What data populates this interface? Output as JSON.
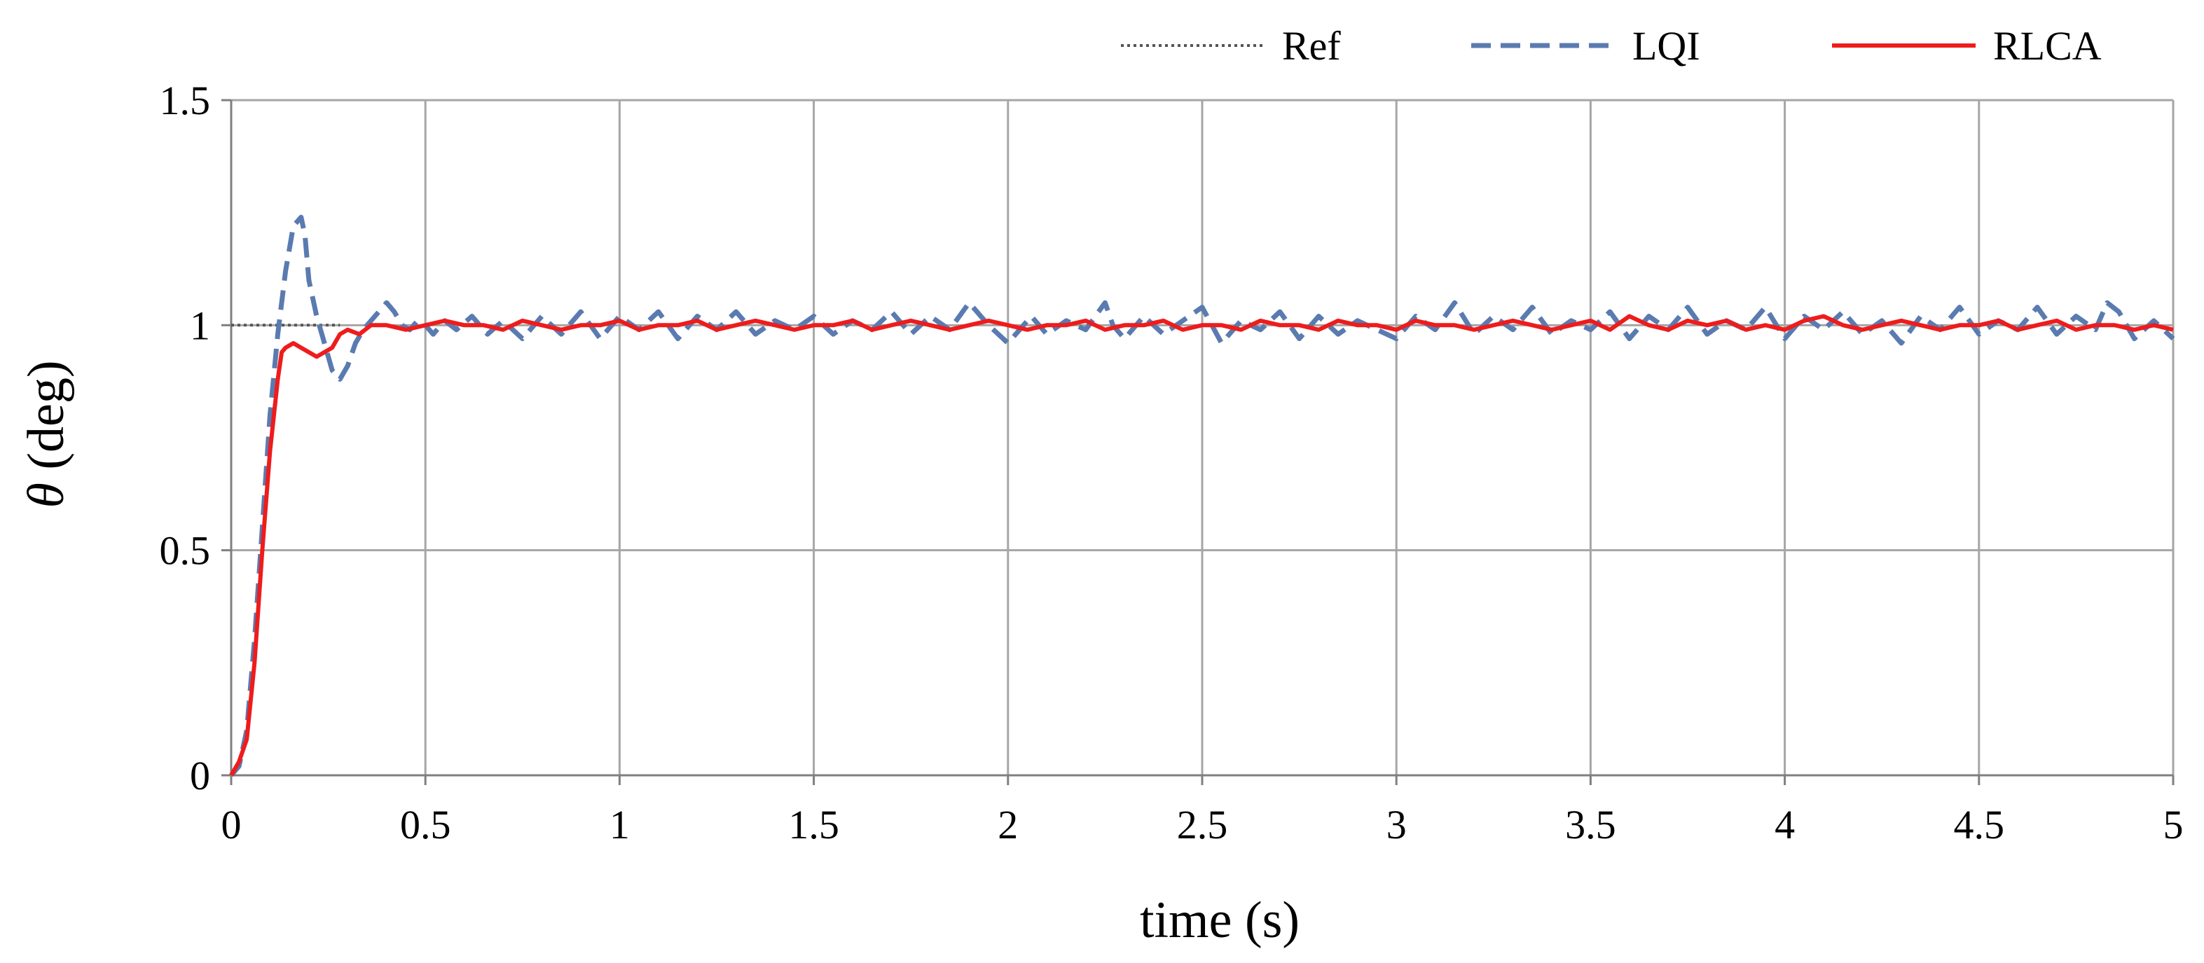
{
  "chart_data": {
    "type": "line",
    "xlabel": "time (s)",
    "ylabel_symbol": "θ",
    "ylabel_unit": " (deg)",
    "xlim": [
      0,
      5
    ],
    "ylim": [
      0,
      1.5
    ],
    "x_ticks": [
      0,
      0.5,
      1,
      1.5,
      2,
      2.5,
      3,
      3.5,
      4,
      4.5,
      5
    ],
    "x_tick_labels": [
      "0",
      "0.5",
      "1",
      "1.5",
      "2",
      "2.5",
      "3",
      "3.5",
      "4",
      "4.5",
      "5"
    ],
    "y_ticks": [
      0,
      0.5,
      1,
      1.5
    ],
    "y_tick_labels": [
      "0",
      "0.5",
      "1",
      "1.5"
    ],
    "grid": true,
    "legend_position": "top-right",
    "series": [
      {
        "name": "Ref",
        "style": "dotted",
        "color": "#555555",
        "x": [
          0,
          0.28
        ],
        "y": [
          1,
          1
        ]
      },
      {
        "name": "LQI",
        "style": "dashed",
        "color": "#5a7bb0",
        "x": [
          0,
          0.02,
          0.04,
          0.06,
          0.08,
          0.1,
          0.12,
          0.14,
          0.16,
          0.18,
          0.19,
          0.2,
          0.22,
          0.24,
          0.26,
          0.28,
          0.3,
          0.32,
          0.34,
          0.36,
          0.38,
          0.4,
          0.42,
          0.44,
          0.46,
          0.48,
          0.5,
          0.52,
          0.55,
          0.58,
          0.62,
          0.66,
          0.7,
          0.75,
          0.8,
          0.85,
          0.9,
          0.95,
          1.0,
          1.05,
          1.1,
          1.15,
          1.2,
          1.25,
          1.3,
          1.35,
          1.4,
          1.45,
          1.5,
          1.55,
          1.6,
          1.65,
          1.7,
          1.75,
          1.8,
          1.85,
          1.9,
          1.93,
          1.95,
          2.0,
          2.03,
          2.06,
          2.1,
          2.15,
          2.2,
          2.25,
          2.27,
          2.3,
          2.35,
          2.4,
          2.45,
          2.5,
          2.55,
          2.6,
          2.65,
          2.7,
          2.75,
          2.8,
          2.85,
          2.9,
          2.95,
          3.0,
          3.05,
          3.1,
          3.15,
          3.2,
          3.25,
          3.3,
          3.35,
          3.4,
          3.45,
          3.5,
          3.55,
          3.6,
          3.65,
          3.7,
          3.75,
          3.8,
          3.85,
          3.9,
          3.95,
          4.0,
          4.05,
          4.1,
          4.15,
          4.2,
          4.25,
          4.3,
          4.35,
          4.4,
          4.45,
          4.5,
          4.55,
          4.6,
          4.65,
          4.7,
          4.75,
          4.8,
          4.83,
          4.86,
          4.9,
          4.95,
          5.0
        ],
        "y": [
          0.0,
          0.02,
          0.1,
          0.3,
          0.55,
          0.8,
          0.98,
          1.12,
          1.22,
          1.24,
          1.2,
          1.1,
          1.02,
          0.96,
          0.9,
          0.88,
          0.91,
          0.96,
          0.99,
          1.01,
          1.03,
          1.05,
          1.03,
          1.0,
          0.99,
          1.01,
          1.0,
          0.98,
          1.01,
          0.99,
          1.02,
          0.98,
          1.01,
          0.97,
          1.02,
          0.98,
          1.03,
          0.97,
          1.02,
          0.99,
          1.03,
          0.97,
          1.02,
          0.99,
          1.03,
          0.98,
          1.01,
          0.99,
          1.02,
          0.98,
          1.01,
          0.99,
          1.03,
          0.98,
          1.02,
          0.99,
          1.05,
          1.02,
          1.0,
          0.96,
          0.99,
          1.02,
          0.98,
          1.01,
          0.99,
          1.05,
          1.0,
          0.97,
          1.02,
          0.98,
          1.01,
          1.04,
          0.96,
          1.01,
          0.99,
          1.03,
          0.97,
          1.02,
          0.98,
          1.01,
          0.99,
          0.97,
          1.02,
          0.99,
          1.05,
          0.98,
          1.02,
          0.99,
          1.04,
          0.98,
          1.01,
          0.99,
          1.03,
          0.97,
          1.02,
          0.99,
          1.04,
          0.98,
          1.01,
          0.99,
          1.04,
          0.97,
          1.02,
          0.99,
          1.03,
          0.98,
          1.01,
          0.96,
          1.02,
          0.99,
          1.04,
          0.98,
          1.01,
          0.99,
          1.04,
          0.98,
          1.02,
          0.99,
          1.05,
          1.03,
          0.97,
          1.01,
          0.97
        ]
      },
      {
        "name": "RLCA",
        "style": "solid",
        "color": "#ee1c1c",
        "x": [
          0,
          0.02,
          0.04,
          0.06,
          0.08,
          0.1,
          0.12,
          0.13,
          0.14,
          0.16,
          0.18,
          0.2,
          0.22,
          0.24,
          0.26,
          0.28,
          0.3,
          0.33,
          0.36,
          0.4,
          0.45,
          0.5,
          0.55,
          0.6,
          0.65,
          0.7,
          0.75,
          0.8,
          0.85,
          0.9,
          0.95,
          1.0,
          1.05,
          1.1,
          1.15,
          1.2,
          1.25,
          1.3,
          1.35,
          1.4,
          1.45,
          1.5,
          1.55,
          1.6,
          1.65,
          1.7,
          1.75,
          1.8,
          1.85,
          1.9,
          1.95,
          2.0,
          2.05,
          2.1,
          2.15,
          2.2,
          2.25,
          2.3,
          2.35,
          2.4,
          2.45,
          2.5,
          2.55,
          2.6,
          2.65,
          2.7,
          2.75,
          2.8,
          2.85,
          2.9,
          2.95,
          3.0,
          3.05,
          3.1,
          3.15,
          3.2,
          3.25,
          3.3,
          3.35,
          3.4,
          3.45,
          3.5,
          3.55,
          3.6,
          3.65,
          3.7,
          3.75,
          3.8,
          3.85,
          3.9,
          3.95,
          4.0,
          4.05,
          4.1,
          4.15,
          4.2,
          4.25,
          4.3,
          4.35,
          4.4,
          4.45,
          4.5,
          4.55,
          4.6,
          4.65,
          4.7,
          4.75,
          4.8,
          4.85,
          4.9,
          4.95,
          5.0
        ],
        "y": [
          0.0,
          0.03,
          0.08,
          0.25,
          0.5,
          0.72,
          0.88,
          0.94,
          0.95,
          0.96,
          0.95,
          0.94,
          0.93,
          0.94,
          0.95,
          0.98,
          0.99,
          0.98,
          1.0,
          1.0,
          0.99,
          1.0,
          1.01,
          1.0,
          1.0,
          0.99,
          1.01,
          1.0,
          0.99,
          1.0,
          1.0,
          1.01,
          0.99,
          1.0,
          1.0,
          1.01,
          0.99,
          1.0,
          1.01,
          1.0,
          0.99,
          1.0,
          1.0,
          1.01,
          0.99,
          1.0,
          1.01,
          1.0,
          0.99,
          1.0,
          1.01,
          1.0,
          0.99,
          1.0,
          1.0,
          1.01,
          0.99,
          1.0,
          1.0,
          1.01,
          0.99,
          1.0,
          1.0,
          0.99,
          1.01,
          1.0,
          1.0,
          0.99,
          1.01,
          1.0,
          1.0,
          0.99,
          1.01,
          1.0,
          1.0,
          0.99,
          1.0,
          1.01,
          1.0,
          0.99,
          1.0,
          1.01,
          0.99,
          1.02,
          1.0,
          0.99,
          1.01,
          1.0,
          1.01,
          0.99,
          1.0,
          0.99,
          1.01,
          1.02,
          1.0,
          0.99,
          1.0,
          1.01,
          1.0,
          0.99,
          1.0,
          1.0,
          1.01,
          0.99,
          1.0,
          1.01,
          0.99,
          1.0,
          1.0,
          0.99,
          1.0,
          0.99
        ]
      }
    ]
  }
}
